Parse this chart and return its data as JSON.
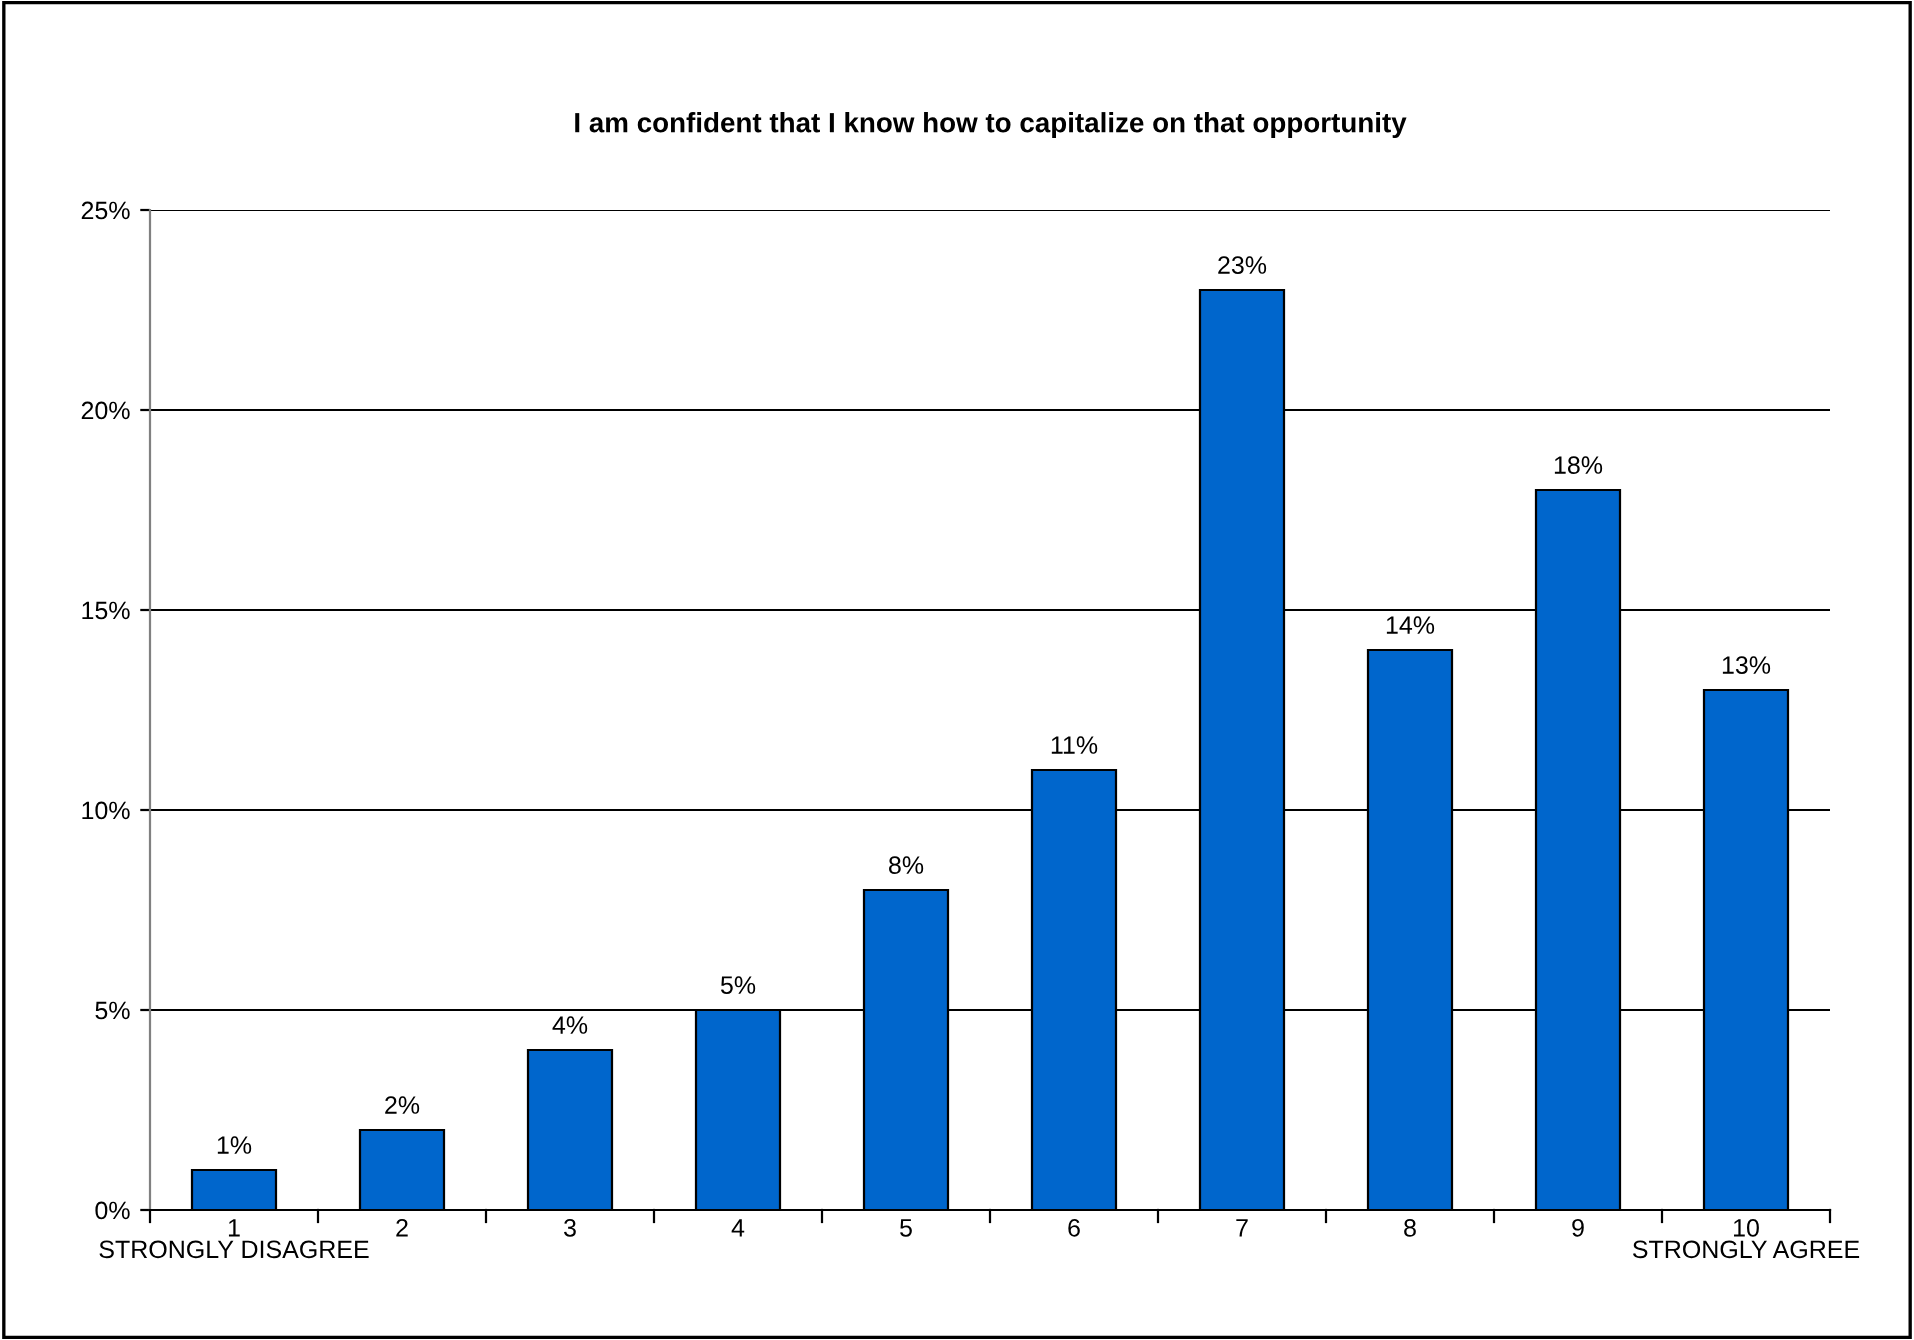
{
  "chart_data": {
    "type": "bar",
    "title": "I am confident that I know how to capitalize on that opportunity",
    "categories": [
      "1\nSTRONGLY DISAGREE",
      "2",
      "3",
      "4",
      "5",
      "6",
      "7",
      "8",
      "9",
      "10\nSTRONGLY AGREE"
    ],
    "values": [
      1,
      2,
      4,
      5,
      8,
      11,
      23,
      14,
      18,
      13
    ],
    "value_labels": [
      "1%",
      "2%",
      "4%",
      "5%",
      "8%",
      "11%",
      "23%",
      "14%",
      "18%",
      "13%"
    ],
    "color": "#0066cc",
    "ylim": [
      0,
      25
    ],
    "yticks": [
      {
        "value": 0,
        "label": "0%"
      },
      {
        "value": 5,
        "label": "5%"
      },
      {
        "value": 10,
        "label": "10%"
      },
      {
        "value": 15,
        "label": "15%"
      },
      {
        "value": 20,
        "label": "20%"
      },
      {
        "value": 25,
        "label": "25%"
      }
    ],
    "grid": "y",
    "legend": false
  }
}
